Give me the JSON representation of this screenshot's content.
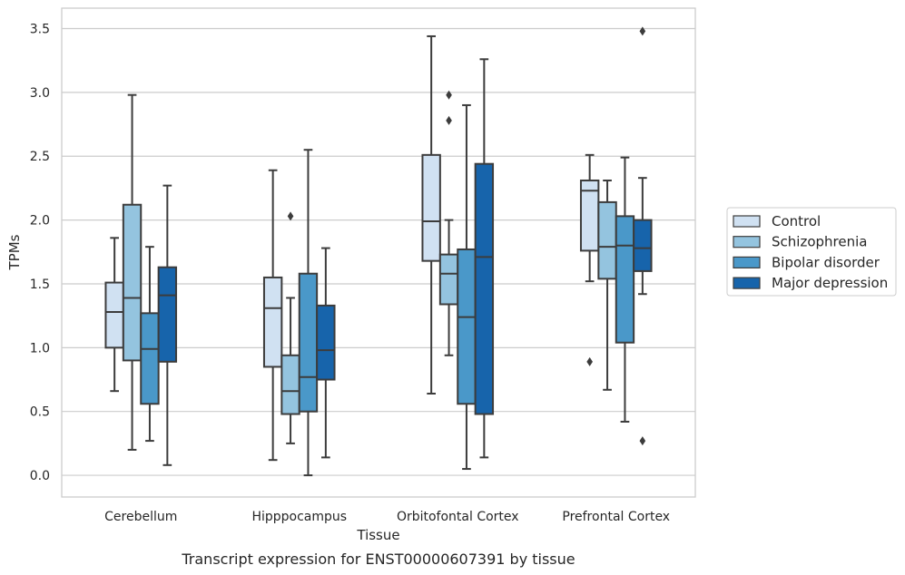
{
  "caption": "Transcript expression for ENST00000607391 by tissue",
  "chart_data": {
    "type": "box",
    "title": "",
    "xlabel": "Tissue",
    "ylabel": "TPMs",
    "ylim": [
      -0.17,
      3.66
    ],
    "yticks": [
      "0.0",
      "0.5",
      "1.0",
      "1.5",
      "2.0",
      "2.5",
      "3.0",
      "3.5"
    ],
    "ytick_values": [
      0.0,
      0.5,
      1.0,
      1.5,
      2.0,
      2.5,
      3.0,
      3.5
    ],
    "grid": "horizontal",
    "legend_position": "right",
    "categories": [
      "Cerebellum",
      "Hipppocampus",
      "Orbitofontal Cortex",
      "Prefrontal Cortex"
    ],
    "series": [
      {
        "name": "Control",
        "color": "#d0e1f2",
        "boxes": [
          {
            "whislo": 0.66,
            "q1": 1.0,
            "med": 1.28,
            "q3": 1.51,
            "whishi": 1.86,
            "fliers": []
          },
          {
            "whislo": 0.12,
            "q1": 0.85,
            "med": 1.31,
            "q3": 1.55,
            "whishi": 2.39,
            "fliers": []
          },
          {
            "whislo": 0.64,
            "q1": 1.68,
            "med": 1.99,
            "q3": 2.51,
            "whishi": 3.44,
            "fliers": []
          },
          {
            "whislo": 1.52,
            "q1": 1.76,
            "med": 2.23,
            "q3": 2.31,
            "whishi": 2.51,
            "fliers": [
              0.89
            ]
          }
        ]
      },
      {
        "name": "Schizophrenia",
        "color": "#94c4df",
        "boxes": [
          {
            "whislo": 0.2,
            "q1": 0.9,
            "med": 1.39,
            "q3": 2.12,
            "whishi": 2.98,
            "fliers": []
          },
          {
            "whislo": 0.25,
            "q1": 0.48,
            "med": 0.66,
            "q3": 0.94,
            "whishi": 1.39,
            "fliers": [
              2.03
            ]
          },
          {
            "whislo": 0.94,
            "q1": 1.34,
            "med": 1.58,
            "q3": 1.73,
            "whishi": 2.0,
            "fliers": [
              2.98,
              2.78
            ]
          },
          {
            "whislo": 0.67,
            "q1": 1.54,
            "med": 1.79,
            "q3": 2.14,
            "whishi": 2.31,
            "fliers": []
          }
        ]
      },
      {
        "name": "Bipolar disorder",
        "color": "#4a98c9",
        "boxes": [
          {
            "whislo": 0.27,
            "q1": 0.56,
            "med": 0.99,
            "q3": 1.27,
            "whishi": 1.79,
            "fliers": []
          },
          {
            "whislo": 0.0,
            "q1": 0.5,
            "med": 0.77,
            "q3": 1.58,
            "whishi": 2.55,
            "fliers": []
          },
          {
            "whislo": 0.05,
            "q1": 0.56,
            "med": 1.24,
            "q3": 1.77,
            "whishi": 2.9,
            "fliers": []
          },
          {
            "whislo": 0.42,
            "q1": 1.04,
            "med": 1.8,
            "q3": 2.03,
            "whishi": 2.49,
            "fliers": []
          }
        ]
      },
      {
        "name": "Major depression",
        "color": "#1764ab",
        "boxes": [
          {
            "whislo": 0.08,
            "q1": 0.89,
            "med": 1.41,
            "q3": 1.63,
            "whishi": 2.27,
            "fliers": []
          },
          {
            "whislo": 0.14,
            "q1": 0.75,
            "med": 0.98,
            "q3": 1.33,
            "whishi": 1.78,
            "fliers": []
          },
          {
            "whislo": 0.14,
            "q1": 0.48,
            "med": 1.71,
            "q3": 2.44,
            "whishi": 3.26,
            "fliers": []
          },
          {
            "whislo": 1.42,
            "q1": 1.6,
            "med": 1.78,
            "q3": 2.0,
            "whishi": 2.33,
            "fliers": [
              0.27,
              3.48
            ]
          }
        ]
      }
    ]
  }
}
